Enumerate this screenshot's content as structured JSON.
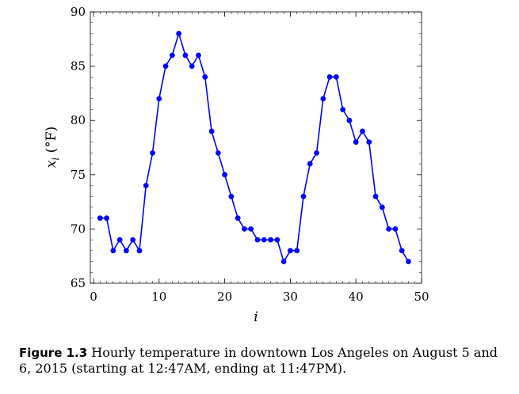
{
  "chart_data": {
    "type": "line",
    "x": [
      1,
      2,
      3,
      4,
      5,
      6,
      7,
      8,
      9,
      10,
      11,
      12,
      13,
      14,
      15,
      16,
      17,
      18,
      19,
      20,
      21,
      22,
      23,
      24,
      25,
      26,
      27,
      28,
      29,
      30,
      31,
      32,
      33,
      34,
      35,
      36,
      37,
      38,
      39,
      40,
      41,
      42,
      43,
      44,
      45,
      46,
      47,
      48
    ],
    "series": [
      {
        "values": [
          71,
          71,
          68,
          69,
          68,
          69,
          68,
          74,
          77,
          82,
          85,
          86,
          88,
          86,
          85,
          86,
          84,
          79,
          77,
          75,
          73,
          71,
          70,
          70,
          69,
          69,
          69,
          69,
          67,
          68,
          68,
          73,
          76,
          77,
          82,
          84,
          84,
          81,
          80,
          78,
          79,
          78,
          73,
          72,
          70,
          70,
          68,
          67
        ],
        "color": "#0000ff"
      }
    ],
    "xlabel": "i",
    "ylabel": "x_i (°F)",
    "ylabel_main": "x",
    "ylabel_sub": "i",
    "ylabel_unit": " (°F)",
    "xlim": [
      0,
      50
    ],
    "ylim": [
      65,
      90
    ],
    "xticks": [
      "0",
      "10",
      "20",
      "30",
      "40",
      "50"
    ],
    "yticks": [
      "65",
      "70",
      "75",
      "80",
      "85",
      "90"
    ],
    "grid": false,
    "marker": "circle"
  },
  "caption": {
    "label": "Figure 1.3",
    "text": " Hourly temperature in downtown Los Angeles on August 5 and 6, 2015 (starting at 12:47AM, ending at 11:47PM)."
  }
}
